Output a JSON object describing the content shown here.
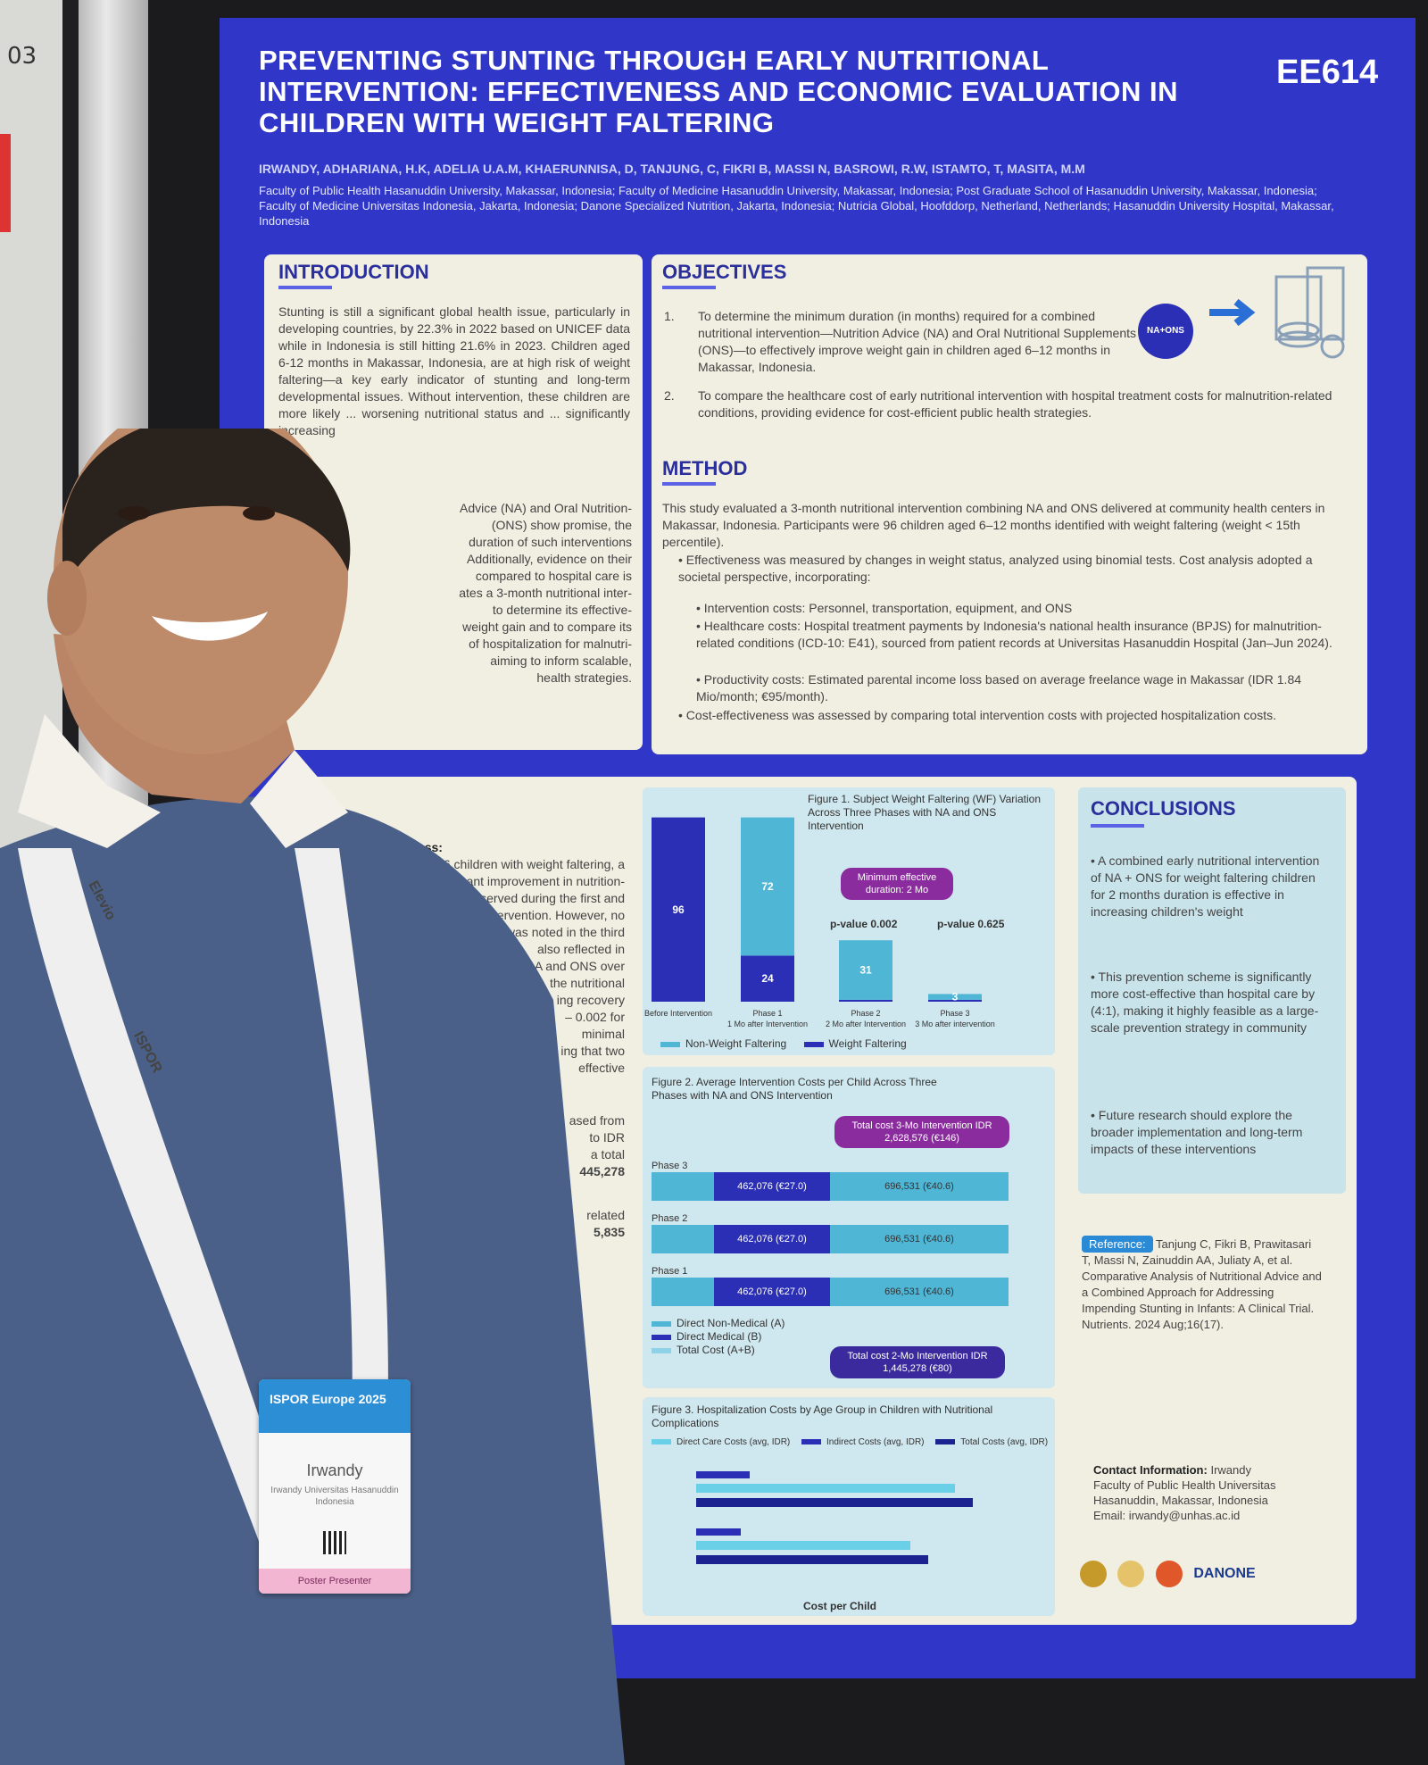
{
  "left_board": {
    "number": "03"
  },
  "poster": {
    "title": "PREVENTING STUNTING THROUGH EARLY NUTRITIONAL INTERVENTION: EFFECTIVENESS AND ECONOMIC EVALUATION IN CHILDREN WITH WEIGHT FALTERING",
    "code": "EE614",
    "authors": "IRWANDY, ADHARIANA, H.K, ADELIA U.A.M, KHAERUNNISA, D, TANJUNG, C, FIKRI B, MASSI N, BASROWI, R.W, ISTAMTO, T, MASITA, M.M",
    "affiliations": "Faculty of Public Health Hasanuddin University, Makassar, Indonesia; Faculty of Medicine Hasanuddin University, Makassar, Indonesia; Post Graduate School of Hasanuddin University, Makassar, Indonesia; Faculty of Medicine Universitas Indonesia, Jakarta, Indonesia; Danone Specialized Nutrition, Jakarta, Indonesia; Nutricia Global, Hoofddorp, Netherland, Netherlands; Hasanuddin University Hospital, Makassar, Indonesia",
    "introduction": {
      "heading": "INTRODUCTION",
      "text": "Stunting is still a significant global health issue, particularly in developing countries, by 22.3% in 2022 based on UNICEF data while in Indonesia is still hitting 21.6% in 2023. Children aged 6-12 months in Makassar, Indonesia, are at high risk of weight faltering—a key early indicator of stunting and long-term developmental issues. Without intervention, these children are more likely ... worsening nutritional status and ... significantly increasing"
    },
    "objectives": {
      "heading": "OBJECTIVES",
      "item1_num": "1.",
      "item1": "To determine the minimum duration (in months) required for a combined nutritional intervention—Nutrition Advice (NA) and Oral Nutritional Supplements (ONS)—to effectively improve weight gain in children aged 6–12 months in Makassar, Indonesia.",
      "item2_num": "2.",
      "item2": "To compare the healthcare cost of early nutritional intervention with hospital treatment costs for malnutrition-related conditions, providing evidence for cost-efficient public health strategies.",
      "badge": "NA+ONS"
    },
    "method": {
      "heading": "METHOD",
      "text": "This study evaluated a 3-month nutritional intervention combining NA and ONS delivered at community health centers in Makassar, Indonesia. Participants were 96 children aged 6–12 months identified with weight faltering (weight < 15th percentile).",
      "b1": "Effectiveness was measured by changes in weight status, analyzed using binomial tests. Cost analysis adopted a societal perspective, incorporating:",
      "b2": "Intervention costs: Personnel, transportation, equipment, and ONS",
      "b3": "Healthcare costs: Hospital treatment payments by Indonesia's national health insurance (BPJS) for malnutrition-related conditions (ICD-10: E41), sourced from patient records at Universitas Hasanuddin Hospital (Jan–Jun 2024).",
      "b4": "Productivity costs: Estimated parental income loss based on average freelance wage in Makassar (IDR 1.84 Mio/month; €95/month).",
      "b5": "Cost-effectiveness was assessed by comparing total intervention costs with projected hospitalization costs."
    },
    "intro_stubs": [
      "Advice (NA) and Oral Nutrition-",
      "(ONS) show promise, the",
      "duration of such interventions",
      "Additionally, evidence on their",
      "compared to hospital care is",
      "ates a 3-month nutritional inter-",
      "to determine its effective-",
      "weight gain and to compare its",
      "of hospitalization for malnutri-",
      "aiming to inform scalable,",
      "health strategies."
    ],
    "results_stubs": [
      "on Effectiveness:",
      "96 children with weight faltering, a",
      "significant improvement in nutrition-",
      "served during the first and",
      "ervention. However, no",
      "was noted in the third",
      "also reflected in",
      "A and ONS over",
      "the nutritional",
      "ing recovery",
      "– 0.002 for",
      "minimal",
      "ing that two",
      "effective",
      "ased from",
      "to IDR",
      "a total",
      "445,278",
      "related",
      "5,835"
    ],
    "figure1": {
      "title": "Figure 1. Subject Weight Faltering (WF) Variation Across Three Phases with NA and ONS Intervention",
      "min_effective": "Minimum effective duration: 2 Mo",
      "pvalue1": "p-value 0.002",
      "pvalue2": "p-value 0.625",
      "legend_light": "Non-Weight Faltering",
      "legend_dark": "Weight Faltering"
    },
    "figure2": {
      "title": "Figure 2. Average Intervention Costs per Child Across Three Phases with NA and ONS Intervention",
      "total3": "Total cost 3-Mo Intervention IDR 2,628,576 (€146)",
      "total2": "Total cost 2-Mo Intervention IDR 1,445,278 (€80)",
      "phase3": "Phase 3",
      "phase2": "Phase 2",
      "phase1": "Phase 1",
      "mid_value": "462,076 (€27.0)",
      "right_value": "696,531 (€40.6)",
      "legend_a": "Direct Non-Medical (A)",
      "legend_b": "Direct Medical (B)",
      "legend_total": "Total Cost (A+B)"
    },
    "figure3": {
      "title": "Figure 3. Hospitalization Costs by Age Group in Children with Nutritional Complications",
      "legend1": "Direct Care Costs (avg, IDR)",
      "legend2": "Indirect Costs (avg, IDR)",
      "legend3": "Total Costs (avg, IDR)",
      "xlabel": "Cost per Child"
    },
    "conclusions": {
      "heading": "CONCLUSIONS",
      "c1": "A combined early nutritional intervention of NA + ONS for weight faltering children for 2 months duration is effective in increasing children's weight",
      "c2": "This prevention scheme is significantly more cost-effective than hospital care by (4:1), making it highly feasible as a large-scale prevention strategy in community",
      "c3": "Future research should explore the broader implementation and long-term impacts of these interventions"
    },
    "reference": {
      "label": "Reference:",
      "text": "Tanjung C, Fikri B, Prawitasari T, Massi N, Zainuddin AA, Juliaty A, et al. Comparative Analysis of Nutritional Advice and a Combined Approach for Addressing Impending Stunting in Infants: A Clinical Trial. Nutrients. 2024 Aug;16(17)."
    },
    "contact": {
      "label": "Contact Information:",
      "name": "Irwandy",
      "org": "Faculty of Public Health Universitas Hasanuddin, Makassar, Indonesia",
      "email": "Email: irwandy@unhas.ac.id"
    },
    "sponsor": "DANONE"
  },
  "chart_data": [
    {
      "type": "bar",
      "title": "Figure 1. Subject Weight Faltering (WF) Variation Across Three Phases with NA and ONS Intervention",
      "categories": [
        "Before Intervention",
        "Phase 1 1 Mo after Intervention",
        "Phase 2 2 Mo after Intervention",
        "Phase 3 3 Mo after intervention"
      ],
      "series": [
        {
          "name": "Non-Weight Faltering",
          "values": [
            0,
            72,
            31,
            3
          ]
        },
        {
          "name": "Weight Faltering",
          "values": [
            96,
            24,
            1,
            1
          ]
        }
      ]
    }
  ],
  "badge": {
    "event": "ISPOR Europe 2025",
    "name": "Irwandy",
    "sub": "Irwandy Universitas Hasanuddin Indonesia",
    "role": "Poster Presenter"
  },
  "lanyard": {
    "text1": "Elevio",
    "text2": "ISPOR"
  }
}
